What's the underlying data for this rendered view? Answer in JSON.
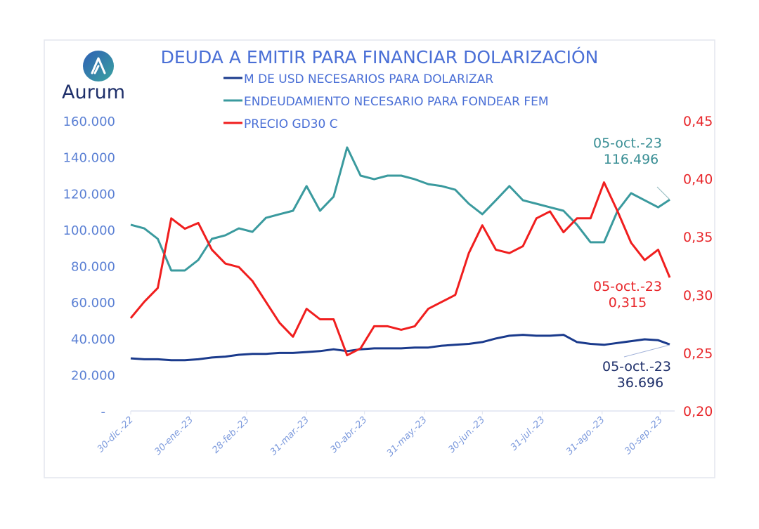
{
  "logo": {
    "text": "Aurum",
    "icon": "aurum-a-logo-icon"
  },
  "colors": {
    "title": "#4a6fd6",
    "navy": "#1a3a8c",
    "teal": "#3a9a9e",
    "red": "#f01e1e",
    "axis_text": "#5b80d4",
    "right_axis_text": "#e8262a"
  },
  "chart_data": {
    "type": "line",
    "title": "DEUDA A EMITIR PARA FINANCIAR DOLARIZACIÓN",
    "legend_position": "top",
    "grid": false,
    "x_tick_labels": [
      "30-dic.-22",
      "30-ene.-23",
      "28-feb.-23",
      "31-mar.-23",
      "30-abr.-23",
      "31-may.-23",
      "30-jun.-23",
      "31-jul.-23",
      "31-ago.-23",
      "30-sep.-23"
    ],
    "x_ticks": [
      "2022-12-30",
      "2023-01-30",
      "2023-02-28",
      "2023-03-31",
      "2023-04-30",
      "2023-05-31",
      "2023-06-30",
      "2023-07-31",
      "2023-08-31",
      "2023-09-30"
    ],
    "x_range": [
      "2022-12-30",
      "2023-10-05"
    ],
    "y_left": {
      "range": [
        0,
        160000
      ],
      "tick_labels": [
        "-",
        "20.000",
        "40.000",
        "60.000",
        "80.000",
        "100.000",
        "120.000",
        "140.000",
        "160.000"
      ]
    },
    "y_right": {
      "range": [
        0.2,
        0.45
      ],
      "tick_labels": [
        "0,20",
        "0,25",
        "0,30",
        "0,35",
        "0,40",
        "0,45"
      ]
    },
    "x": [
      "2022-12-30",
      "2023-01-06",
      "2023-01-13",
      "2023-01-20",
      "2023-01-27",
      "2023-02-03",
      "2023-02-10",
      "2023-02-17",
      "2023-02-24",
      "2023-03-03",
      "2023-03-10",
      "2023-03-17",
      "2023-03-24",
      "2023-03-31",
      "2023-04-07",
      "2023-04-14",
      "2023-04-21",
      "2023-04-28",
      "2023-05-05",
      "2023-05-12",
      "2023-05-19",
      "2023-05-26",
      "2023-06-02",
      "2023-06-09",
      "2023-06-16",
      "2023-06-23",
      "2023-06-30",
      "2023-07-07",
      "2023-07-14",
      "2023-07-21",
      "2023-07-28",
      "2023-08-04",
      "2023-08-11",
      "2023-08-18",
      "2023-08-25",
      "2023-09-01",
      "2023-09-08",
      "2023-09-15",
      "2023-09-22",
      "2023-09-29",
      "2023-10-05"
    ],
    "series": [
      {
        "name": "M DE USD NECESARIOS PARA DOLARIZAR",
        "axis": "left",
        "color": "#1a3a8c",
        "values": [
          29000,
          28500,
          28500,
          28000,
          28000,
          28500,
          29500,
          30000,
          31000,
          31500,
          31500,
          32000,
          32000,
          32500,
          33000,
          34000,
          33000,
          34000,
          34500,
          34500,
          34500,
          35000,
          35000,
          36000,
          36500,
          37000,
          38000,
          40000,
          41500,
          42000,
          41500,
          41500,
          42000,
          38000,
          37000,
          36500,
          37500,
          38500,
          39500,
          39000,
          36696
        ]
      },
      {
        "name": "ENDEUDAMIENTO NECESARIO PARA FONDEAR FEM",
        "axis": "left",
        "color": "#3a9a9e",
        "values": [
          102700,
          100700,
          94900,
          77500,
          77500,
          83300,
          94900,
          96900,
          100700,
          98800,
          106500,
          108500,
          110400,
          124000,
          110400,
          118200,
          145300,
          129800,
          127800,
          129800,
          129800,
          127800,
          125100,
          124000,
          122000,
          114300,
          108500,
          116200,
          124000,
          116200,
          114300,
          112300,
          110400,
          102700,
          93000,
          93000,
          110400,
          120100,
          116200,
          112300,
          116496
        ]
      },
      {
        "name": "PRECIO GD30 C",
        "axis": "right",
        "color": "#f01e1e",
        "values": [
          0.28,
          0.294,
          0.306,
          0.366,
          0.357,
          0.362,
          0.339,
          0.327,
          0.324,
          0.312,
          0.294,
          0.276,
          0.264,
          0.288,
          0.279,
          0.279,
          0.248,
          0.254,
          0.273,
          0.273,
          0.27,
          0.273,
          0.288,
          0.294,
          0.3,
          0.336,
          0.36,
          0.339,
          0.336,
          0.342,
          0.366,
          0.372,
          0.354,
          0.366,
          0.366,
          0.397,
          0.372,
          0.345,
          0.33,
          0.339,
          0.315
        ]
      }
    ],
    "annotations": [
      {
        "series": "ENDEUDAMIENTO NECESARIO PARA FONDEAR FEM",
        "date": "05-oct.-23",
        "value": "116.496"
      },
      {
        "series": "PRECIO GD30 C",
        "date": "05-oct.-23",
        "value": "0,315"
      },
      {
        "series": "M DE USD NECESARIOS PARA DOLARIZAR",
        "date": "05-oct.-23",
        "value": "36.696"
      }
    ]
  }
}
